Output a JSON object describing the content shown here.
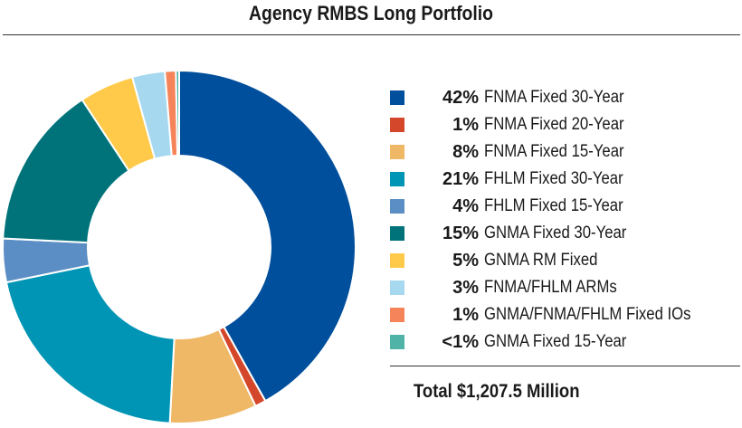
{
  "title": "Agency RMBS Long Portfolio",
  "total_label": "Total $1,207.5 Million",
  "chart_data": {
    "type": "pie",
    "title": "Agency RMBS Long Portfolio",
    "donut": true,
    "legend_position": "right",
    "slices": [
      {
        "label": "FNMA Fixed 30-Year",
        "display": "42%",
        "value": 42,
        "color": "#004f9c"
      },
      {
        "label": "FNMA Fixed 20-Year",
        "display": "1%",
        "value": 1,
        "color": "#d5472a"
      },
      {
        "label": "FNMA Fixed 15-Year",
        "display": "8%",
        "value": 8,
        "color": "#efb866"
      },
      {
        "label": "FHLM Fixed 30-Year",
        "display": "21%",
        "value": 21,
        "color": "#0094b5"
      },
      {
        "label": "FHLM Fixed 15-Year",
        "display": "4%",
        "value": 4,
        "color": "#5b8ec4"
      },
      {
        "label": "GNMA Fixed 30-Year",
        "display": "15%",
        "value": 15,
        "color": "#00737a"
      },
      {
        "label": "GNMA RM Fixed",
        "display": "5%",
        "value": 5,
        "color": "#ffca4a"
      },
      {
        "label": "FNMA/FHLM ARMs",
        "display": "3%",
        "value": 3,
        "color": "#a6d8ef"
      },
      {
        "label": "GNMA/FNMA/FHLM Fixed IOs",
        "display": "1%",
        "value": 1,
        "color": "#f6845a"
      },
      {
        "label": "GNMA Fixed 15-Year",
        "display": "<1%",
        "value": 0.3,
        "color": "#4fb3a8"
      }
    ]
  }
}
